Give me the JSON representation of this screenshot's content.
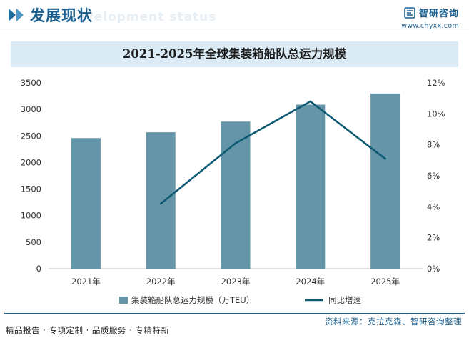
{
  "header": {
    "section_title": "发展现状",
    "section_watermark": "Development status",
    "brand_name": "智研咨询",
    "brand_url": "www.chyxx.com"
  },
  "chart_data": {
    "type": "bar",
    "title": "2021-2025年全球集装箱船队总运力规模",
    "categories": [
      "2021年",
      "2022年",
      "2023年",
      "2024年",
      "2025年"
    ],
    "series": [
      {
        "name": "集装箱船队总运力规模（万TEU）",
        "type": "bar",
        "axis": "left",
        "values": [
          2460,
          2570,
          2770,
          3090,
          3300
        ]
      },
      {
        "name": "同比增速",
        "type": "line",
        "axis": "right",
        "values": [
          null,
          4.2,
          8.1,
          10.8,
          7.1
        ]
      }
    ],
    "y_left": {
      "min": 0,
      "max": 3500,
      "step": 500,
      "ticks": [
        "0",
        "500",
        "1000",
        "1500",
        "2000",
        "2500",
        "3000",
        "3500"
      ]
    },
    "y_right": {
      "min": 0,
      "max": 12,
      "step": 2,
      "ticks": [
        "0%",
        "2%",
        "4%",
        "6%",
        "8%",
        "10%",
        "12%"
      ]
    },
    "colors": {
      "bar": "#6495a9",
      "line": "#0e5a73"
    },
    "legend": {
      "position": "bottom"
    },
    "grid": false
  },
  "footer": {
    "slogan": "精品报告 · 专项定制 · 品质服务 · 专精特新",
    "source": "资料来源：克拉克森、智研咨询整理"
  }
}
